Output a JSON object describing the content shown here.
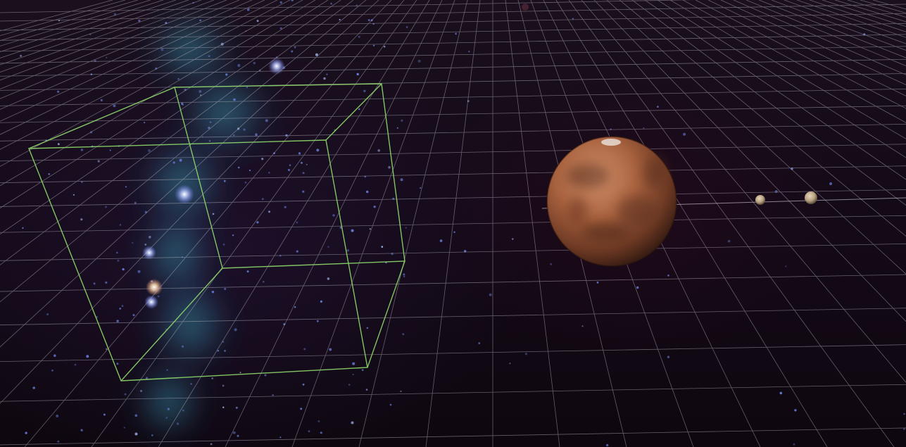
{
  "scene": {
    "objects": [
      {
        "kind": "grid-floor"
      },
      {
        "kind": "starfield"
      },
      {
        "kind": "wireframe-cube",
        "color": "#8fd96b"
      },
      {
        "kind": "planet",
        "color": "#a8623f"
      },
      {
        "kind": "moon",
        "color": "#b8a080"
      },
      {
        "kind": "moon",
        "color": "#b8a080"
      }
    ],
    "colors": {
      "background": "#140a17",
      "grid": "#c9c3cf",
      "nebula": "#3fb4c9",
      "cube_edges": "#8fd96b",
      "planet_base": "#a8623f",
      "moon": "#b8a080"
    }
  }
}
